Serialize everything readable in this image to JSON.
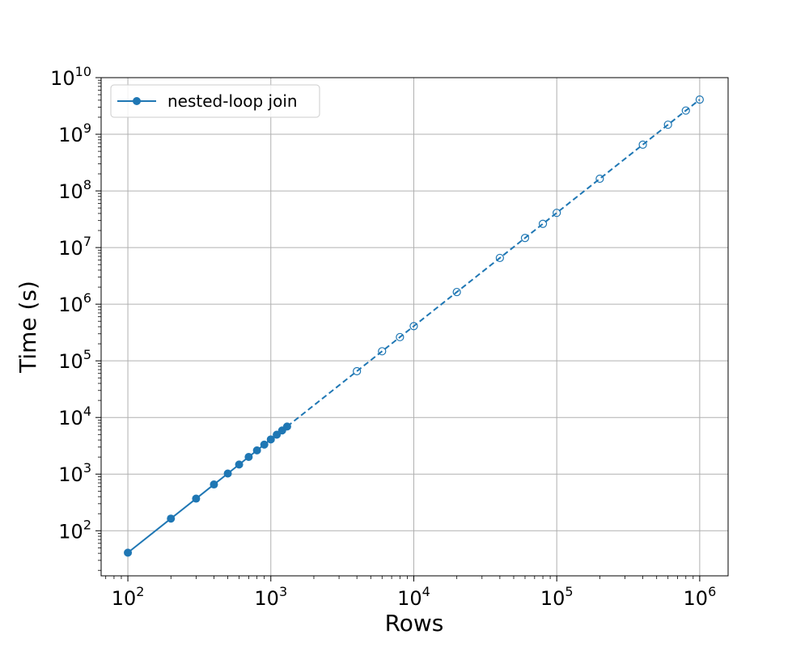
{
  "chart_data": {
    "type": "line",
    "title": "",
    "xlabel": "Rows",
    "ylabel": "Time (s)",
    "xscale": "log",
    "yscale": "log",
    "xlim": [
      65,
      1580000
    ],
    "ylim": [
      16,
      10000000000
    ],
    "grid": true,
    "legend": {
      "placement": "top-left",
      "entries": [
        "nested-loop join"
      ]
    },
    "x_ticks": [
      {
        "base": "10",
        "exp": "2",
        "value": 100
      },
      {
        "base": "10",
        "exp": "3",
        "value": 1000
      },
      {
        "base": "10",
        "exp": "4",
        "value": 10000
      },
      {
        "base": "10",
        "exp": "5",
        "value": 100000
      },
      {
        "base": "10",
        "exp": "6",
        "value": 1000000
      }
    ],
    "y_ticks": [
      {
        "base": "10",
        "exp": "2",
        "value": 100
      },
      {
        "base": "10",
        "exp": "3",
        "value": 1000
      },
      {
        "base": "10",
        "exp": "4",
        "value": 10000
      },
      {
        "base": "10",
        "exp": "5",
        "value": 100000
      },
      {
        "base": "10",
        "exp": "6",
        "value": 1000000
      },
      {
        "base": "10",
        "exp": "7",
        "value": 10000000
      },
      {
        "base": "10",
        "exp": "8",
        "value": 100000000
      },
      {
        "base": "10",
        "exp": "9",
        "value": 1000000000
      },
      {
        "base": "10",
        "exp": "10",
        "value": 10000000000
      }
    ],
    "color": "#1f77b4",
    "series": [
      {
        "name": "nested-loop join",
        "style": "solid",
        "marker": "filled-circle",
        "x": [
          100,
          200,
          300,
          400,
          500,
          600,
          700,
          800,
          900,
          1000,
          1100,
          1200,
          1300
        ],
        "y": [
          41,
          164,
          369,
          656,
          1025,
          1476,
          2009,
          2624,
          3321,
          4100,
          4961,
          5904,
          6929
        ]
      },
      {
        "name": "",
        "style": "dashed",
        "marker": "open-circle",
        "x": [
          1300,
          4000,
          6000,
          8000,
          10000,
          20000,
          40000,
          60000,
          80000,
          100000,
          200000,
          400000,
          600000,
          800000,
          1000000
        ],
        "y": [
          6929,
          65600,
          147600,
          262400,
          410000,
          1640000,
          6560000,
          14760000,
          26240000,
          41000000,
          164000000,
          656000000,
          1476000000,
          2624000000,
          4100000000
        ]
      }
    ]
  }
}
